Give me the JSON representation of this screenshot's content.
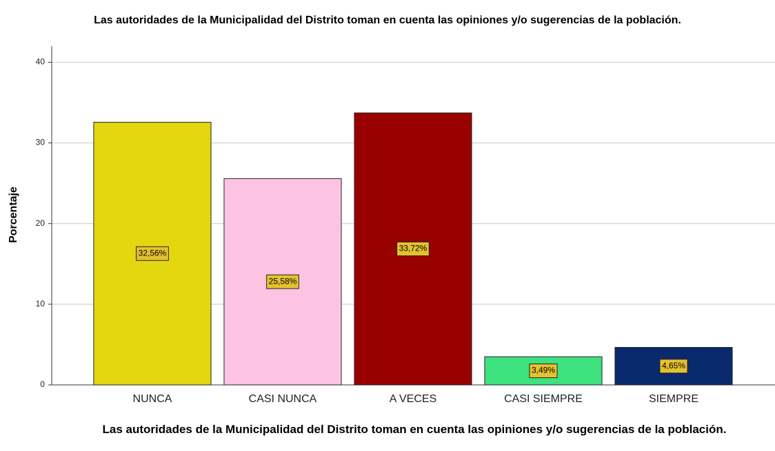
{
  "chart_data": {
    "type": "bar",
    "title": "Las autoridades de la Municipalidad del Distrito toman en cuenta las opiniones y/o sugerencias de la población.",
    "x_label": "Las autoridades de la Municipalidad del Distrito toman en cuenta las opiniones y/o sugerencias de la población.",
    "y_label": "Porcentaje",
    "categories": [
      "NUNCA",
      "CASI NUNCA",
      "A VECES",
      "CASI SIEMPRE",
      "SIEMPRE"
    ],
    "values": [
      32.56,
      25.58,
      33.72,
      3.49,
      4.65
    ],
    "value_labels": [
      "32,56%",
      "25,58%",
      "33,72%",
      "3,49%",
      "4,65%"
    ],
    "colors": [
      "#e3d70f",
      "#fcc3e3",
      "#990000",
      "#3de17e",
      "#0a2a6e"
    ],
    "ylim": [
      0,
      42
    ],
    "yticks": [
      0,
      10,
      20,
      30,
      40
    ],
    "grid": true
  }
}
